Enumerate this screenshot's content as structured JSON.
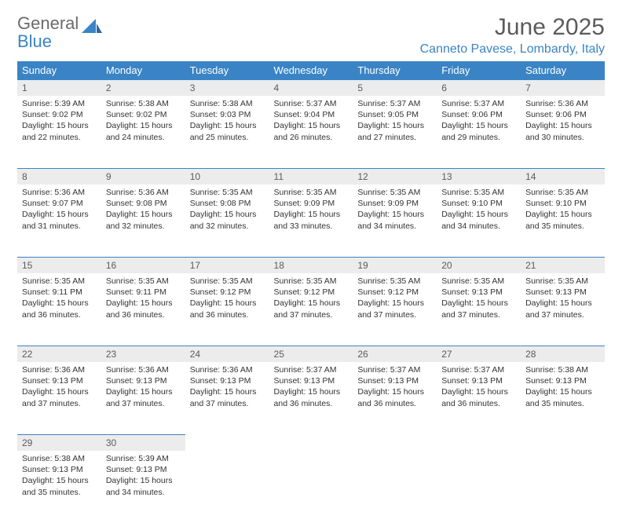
{
  "logo": {
    "word1": "General",
    "word2": "Blue"
  },
  "title": "June 2025",
  "location": "Canneto Pavese, Lombardy, Italy",
  "colors": {
    "header_bg": "#3a84c5",
    "header_text": "#ffffff",
    "daynum_bg": "#ececec",
    "daynum_border": "#3a84c5",
    "body_text": "#333333",
    "logo_gray": "#6b6b6b",
    "logo_blue": "#3a84c5"
  },
  "dayHeaders": [
    "Sunday",
    "Monday",
    "Tuesday",
    "Wednesday",
    "Thursday",
    "Friday",
    "Saturday"
  ],
  "weeks": [
    [
      {
        "n": "1",
        "sunrise": "5:39 AM",
        "sunset": "9:02 PM",
        "daylight": "15 hours and 22 minutes."
      },
      {
        "n": "2",
        "sunrise": "5:38 AM",
        "sunset": "9:02 PM",
        "daylight": "15 hours and 24 minutes."
      },
      {
        "n": "3",
        "sunrise": "5:38 AM",
        "sunset": "9:03 PM",
        "daylight": "15 hours and 25 minutes."
      },
      {
        "n": "4",
        "sunrise": "5:37 AM",
        "sunset": "9:04 PM",
        "daylight": "15 hours and 26 minutes."
      },
      {
        "n": "5",
        "sunrise": "5:37 AM",
        "sunset": "9:05 PM",
        "daylight": "15 hours and 27 minutes."
      },
      {
        "n": "6",
        "sunrise": "5:37 AM",
        "sunset": "9:06 PM",
        "daylight": "15 hours and 29 minutes."
      },
      {
        "n": "7",
        "sunrise": "5:36 AM",
        "sunset": "9:06 PM",
        "daylight": "15 hours and 30 minutes."
      }
    ],
    [
      {
        "n": "8",
        "sunrise": "5:36 AM",
        "sunset": "9:07 PM",
        "daylight": "15 hours and 31 minutes."
      },
      {
        "n": "9",
        "sunrise": "5:36 AM",
        "sunset": "9:08 PM",
        "daylight": "15 hours and 32 minutes."
      },
      {
        "n": "10",
        "sunrise": "5:35 AM",
        "sunset": "9:08 PM",
        "daylight": "15 hours and 32 minutes."
      },
      {
        "n": "11",
        "sunrise": "5:35 AM",
        "sunset": "9:09 PM",
        "daylight": "15 hours and 33 minutes."
      },
      {
        "n": "12",
        "sunrise": "5:35 AM",
        "sunset": "9:09 PM",
        "daylight": "15 hours and 34 minutes."
      },
      {
        "n": "13",
        "sunrise": "5:35 AM",
        "sunset": "9:10 PM",
        "daylight": "15 hours and 34 minutes."
      },
      {
        "n": "14",
        "sunrise": "5:35 AM",
        "sunset": "9:10 PM",
        "daylight": "15 hours and 35 minutes."
      }
    ],
    [
      {
        "n": "15",
        "sunrise": "5:35 AM",
        "sunset": "9:11 PM",
        "daylight": "15 hours and 36 minutes."
      },
      {
        "n": "16",
        "sunrise": "5:35 AM",
        "sunset": "9:11 PM",
        "daylight": "15 hours and 36 minutes."
      },
      {
        "n": "17",
        "sunrise": "5:35 AM",
        "sunset": "9:12 PM",
        "daylight": "15 hours and 36 minutes."
      },
      {
        "n": "18",
        "sunrise": "5:35 AM",
        "sunset": "9:12 PM",
        "daylight": "15 hours and 37 minutes."
      },
      {
        "n": "19",
        "sunrise": "5:35 AM",
        "sunset": "9:12 PM",
        "daylight": "15 hours and 37 minutes."
      },
      {
        "n": "20",
        "sunrise": "5:35 AM",
        "sunset": "9:13 PM",
        "daylight": "15 hours and 37 minutes."
      },
      {
        "n": "21",
        "sunrise": "5:35 AM",
        "sunset": "9:13 PM",
        "daylight": "15 hours and 37 minutes."
      }
    ],
    [
      {
        "n": "22",
        "sunrise": "5:36 AM",
        "sunset": "9:13 PM",
        "daylight": "15 hours and 37 minutes."
      },
      {
        "n": "23",
        "sunrise": "5:36 AM",
        "sunset": "9:13 PM",
        "daylight": "15 hours and 37 minutes."
      },
      {
        "n": "24",
        "sunrise": "5:36 AM",
        "sunset": "9:13 PM",
        "daylight": "15 hours and 37 minutes."
      },
      {
        "n": "25",
        "sunrise": "5:37 AM",
        "sunset": "9:13 PM",
        "daylight": "15 hours and 36 minutes."
      },
      {
        "n": "26",
        "sunrise": "5:37 AM",
        "sunset": "9:13 PM",
        "daylight": "15 hours and 36 minutes."
      },
      {
        "n": "27",
        "sunrise": "5:37 AM",
        "sunset": "9:13 PM",
        "daylight": "15 hours and 36 minutes."
      },
      {
        "n": "28",
        "sunrise": "5:38 AM",
        "sunset": "9:13 PM",
        "daylight": "15 hours and 35 minutes."
      }
    ],
    [
      {
        "n": "29",
        "sunrise": "5:38 AM",
        "sunset": "9:13 PM",
        "daylight": "15 hours and 35 minutes."
      },
      {
        "n": "30",
        "sunrise": "5:39 AM",
        "sunset": "9:13 PM",
        "daylight": "15 hours and 34 minutes."
      },
      null,
      null,
      null,
      null,
      null
    ]
  ],
  "labels": {
    "sunrise": "Sunrise:",
    "sunset": "Sunset:",
    "daylight": "Daylight:"
  }
}
